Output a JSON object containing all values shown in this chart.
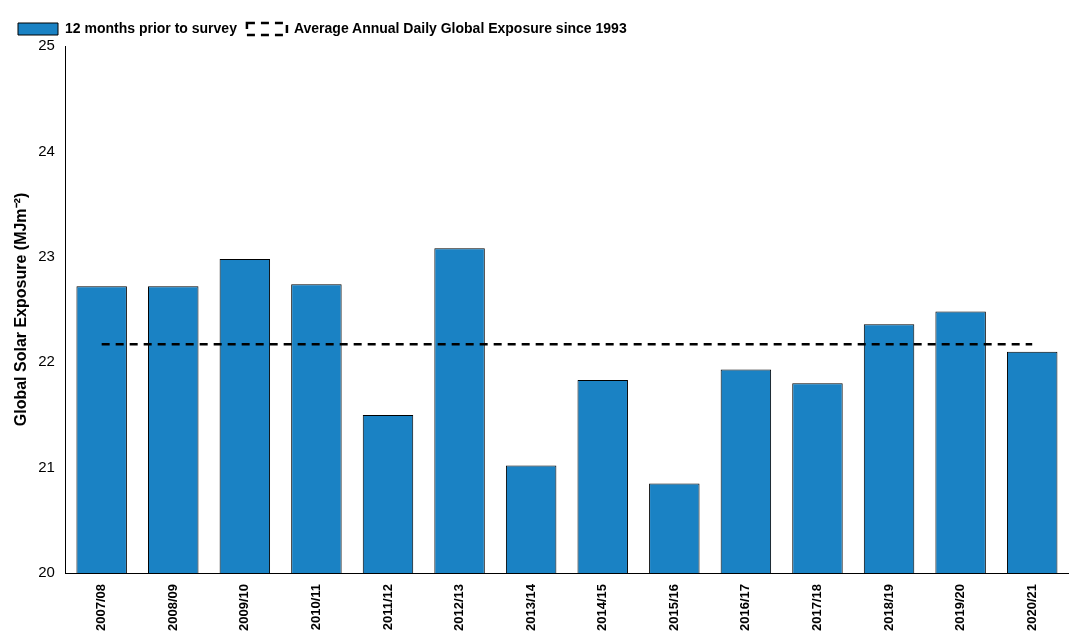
{
  "chart_data": {
    "type": "bar",
    "ylabel": "Global Solar Exposure (MJm⁻²)",
    "categories": [
      "2007/08",
      "2008/09",
      "2009/10",
      "2010/11",
      "2011/12",
      "2012/13",
      "2013/14",
      "2014/15",
      "2015/16",
      "2016/17",
      "2017/18",
      "2018/19",
      "2019/20",
      "2020/21"
    ],
    "series": [
      {
        "name": "12 months prior to survey",
        "color": "#1a82c4",
        "values": [
          22.72,
          22.72,
          22.98,
          22.74,
          21.5,
          23.08,
          21.02,
          21.83,
          20.85,
          21.93,
          21.8,
          22.36,
          22.48,
          22.1
        ]
      }
    ],
    "ylim": [
      20,
      25
    ],
    "yticks": [
      20,
      21,
      22,
      23,
      24,
      25
    ],
    "ref_lines": [
      {
        "axis": "y",
        "value": 22.17,
        "label": "Average Annual Daily Global Exposure since 1993",
        "color": "#000000",
        "line_style": "dashed"
      }
    ],
    "grid": false,
    "legend": "top left"
  }
}
